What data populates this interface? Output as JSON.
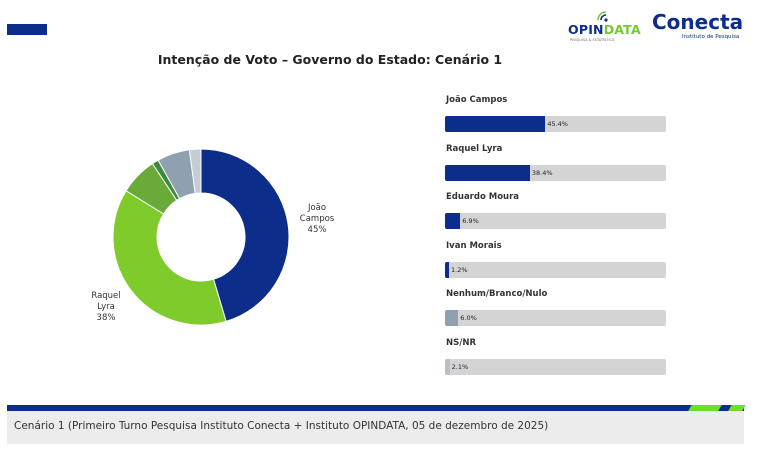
{
  "logos": {
    "opindata": {
      "prefix": "OPIN",
      "highlight": "DATA",
      "tagline": "PESQUISA & ESTATÍSTICA"
    },
    "conecta": {
      "name": "Conecta",
      "tagline": "Instituto de Pesquisa"
    }
  },
  "caption": "Cenário 1 (Primeiro Turno Pesquisa Instituto Conecta + Instituto OPINDATA, 05 de dezembro de 2025)",
  "colors": {
    "navy": "#0c2e8a",
    "green": "#74c92b",
    "track": "#d4d4d4"
  },
  "chart_data": [
    {
      "type": "pie",
      "title": "Intenção de Voto – Governo do Estado: Cenário 1",
      "donut": true,
      "slices": [
        {
          "name": "João Campos",
          "value": 45.4,
          "color": "#0c2e8a",
          "label_lines": [
            "João",
            "Campos",
            "45%"
          ]
        },
        {
          "name": "Raquel Lyra",
          "value": 38.4,
          "color": "#7fcb2b",
          "label_lines": [
            "Raquel",
            "Lyra",
            "38%"
          ]
        },
        {
          "name": "Eduardo Moura",
          "value": 6.9,
          "color": "#6aaa38",
          "label_lines": []
        },
        {
          "name": "Ivan Morais",
          "value": 1.2,
          "color": "#3c8a3c",
          "label_lines": []
        },
        {
          "name": "Nenhum/Branco/Nulo",
          "value": 6.0,
          "color": "#8fa0b1",
          "label_lines": []
        },
        {
          "name": "NS/NR",
          "value": 2.1,
          "color": "#c6ccd4",
          "label_lines": []
        }
      ]
    },
    {
      "type": "bar",
      "orientation": "horizontal",
      "categories": [
        "João Campos",
        "Raquel Lyra",
        "Eduardo Moura",
        "Ivan Morais",
        "Nenhum/Branco/Nulo",
        "NS/NR"
      ],
      "values": [
        45.4,
        38.4,
        6.9,
        1.2,
        6.0,
        2.1
      ],
      "value_labels": [
        "45.4%",
        "38.4%",
        "6.9%",
        "1.2%",
        "6.0%",
        "2.1%"
      ],
      "colors": [
        "#0c2e8a",
        "#0c2e8a",
        "#0c2e8a",
        "#0c2e8a",
        "#8fa0b1",
        "#b6c0cc"
      ],
      "xlim": [
        0,
        100
      ]
    }
  ]
}
